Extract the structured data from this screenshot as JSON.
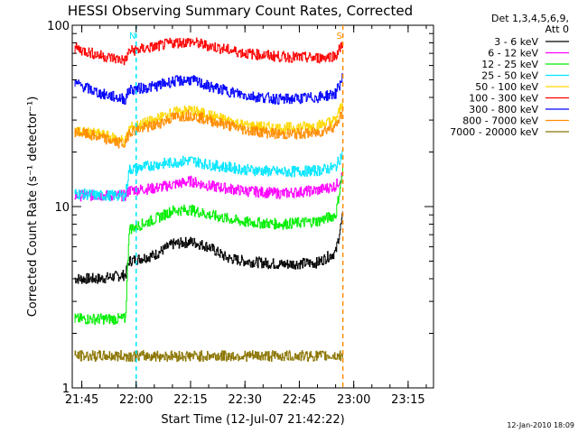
{
  "chart_data": {
    "type": "line",
    "title": "HESSI Observing Summary Count Rates, Corrected",
    "xlabel": "Start Time (12-Jul-07 21:42:22)",
    "ylabel": "Corrected Count Rate (s⁻¹ detector⁻¹)",
    "y_scale": "log",
    "ylim": [
      1,
      100
    ],
    "xlim": [
      "21:42:22",
      "23:22:00"
    ],
    "x_ticks": [
      "21:45",
      "22:00",
      "22:15",
      "22:30",
      "22:45",
      "23:00",
      "23:15"
    ],
    "y_ticks": [
      "1",
      "10",
      "100"
    ],
    "grid": false,
    "legend_header": [
      "Det 1,3,4,5,6,9,",
      "Att 0"
    ],
    "legend_position": "right",
    "timestamp": "12-Jan-2010 18:09",
    "markers": [
      {
        "label": "N",
        "time": "22:00",
        "color": "#00e6ff"
      },
      {
        "label": "S",
        "time": "22:57",
        "color": "#ff8c00"
      }
    ],
    "series": [
      {
        "name": "3 - 6 keV",
        "color": "#000000",
        "points": [
          [
            "21:43",
            4.0
          ],
          [
            "21:50",
            4.0
          ],
          [
            "21:57",
            4.2
          ],
          [
            "21:58",
            5.0
          ],
          [
            "22:05",
            5.4
          ],
          [
            "22:10",
            6.2
          ],
          [
            "22:15",
            6.4
          ],
          [
            "22:20",
            6.0
          ],
          [
            "22:25",
            5.2
          ],
          [
            "22:30",
            5.0
          ],
          [
            "22:40",
            4.8
          ],
          [
            "22:50",
            4.9
          ],
          [
            "22:55",
            5.6
          ],
          [
            "22:57",
            9.0
          ]
        ]
      },
      {
        "name": "6 - 12 keV",
        "color": "#ff00ff",
        "points": [
          [
            "21:43",
            11.5
          ],
          [
            "21:50",
            11.5
          ],
          [
            "21:57",
            11.5
          ],
          [
            "21:58",
            12.3
          ],
          [
            "22:05",
            12.6
          ],
          [
            "22:10",
            13.2
          ],
          [
            "22:15",
            13.8
          ],
          [
            "22:20",
            13.0
          ],
          [
            "22:30",
            12.2
          ],
          [
            "22:40",
            11.8
          ],
          [
            "22:50",
            12.3
          ],
          [
            "22:55",
            13.0
          ],
          [
            "22:57",
            15.0
          ]
        ]
      },
      {
        "name": "12 - 25 keV",
        "color": "#00ee00",
        "points": [
          [
            "21:43",
            2.4
          ],
          [
            "21:57",
            2.4
          ],
          [
            "21:58",
            7.5
          ],
          [
            "22:05",
            8.5
          ],
          [
            "22:10",
            9.5
          ],
          [
            "22:15",
            9.6
          ],
          [
            "22:20",
            9.0
          ],
          [
            "22:30",
            8.2
          ],
          [
            "22:40",
            8.0
          ],
          [
            "22:50",
            8.3
          ],
          [
            "22:55",
            9.0
          ],
          [
            "22:57",
            16.0
          ]
        ]
      },
      {
        "name": "25 - 50 keV",
        "color": "#00e6ff",
        "points": [
          [
            "21:43",
            11.8
          ],
          [
            "21:50",
            11.5
          ],
          [
            "21:57",
            11.5
          ],
          [
            "21:58",
            16.0
          ],
          [
            "22:05",
            17.0
          ],
          [
            "22:10",
            17.5
          ],
          [
            "22:15",
            18.0
          ],
          [
            "22:20",
            17.0
          ],
          [
            "22:30",
            16.0
          ],
          [
            "22:40",
            15.5
          ],
          [
            "22:50",
            15.8
          ],
          [
            "22:55",
            16.5
          ],
          [
            "22:57",
            20.0
          ]
        ]
      },
      {
        "name": "50 - 100 keV",
        "color": "#ffd700",
        "points": [
          [
            "21:43",
            26.0
          ],
          [
            "21:50",
            25.0
          ],
          [
            "21:57",
            23.0
          ],
          [
            "21:58",
            27.0
          ],
          [
            "22:05",
            30.0
          ],
          [
            "22:10",
            33.0
          ],
          [
            "22:15",
            34.0
          ],
          [
            "22:20",
            32.0
          ],
          [
            "22:30",
            28.0
          ],
          [
            "22:40",
            27.0
          ],
          [
            "22:50",
            28.0
          ],
          [
            "22:55",
            30.0
          ],
          [
            "22:57",
            38.0
          ]
        ]
      },
      {
        "name": "100 - 300 keV",
        "color": "#ff0000",
        "points": [
          [
            "21:43",
            75.0
          ],
          [
            "21:50",
            68.0
          ],
          [
            "21:57",
            64.0
          ],
          [
            "21:58",
            72.0
          ],
          [
            "22:05",
            76.0
          ],
          [
            "22:10",
            80.0
          ],
          [
            "22:15",
            81.0
          ],
          [
            "22:20",
            77.0
          ],
          [
            "22:30",
            70.0
          ],
          [
            "22:40",
            67.0
          ],
          [
            "22:50",
            66.0
          ],
          [
            "22:55",
            68.0
          ],
          [
            "22:57",
            80.0
          ]
        ]
      },
      {
        "name": "300 - 800 keV",
        "color": "#0000ff",
        "points": [
          [
            "21:43",
            48.0
          ],
          [
            "21:50",
            42.0
          ],
          [
            "21:57",
            39.0
          ],
          [
            "21:58",
            44.0
          ],
          [
            "22:05",
            46.0
          ],
          [
            "22:10",
            49.0
          ],
          [
            "22:15",
            50.0
          ],
          [
            "22:20",
            46.0
          ],
          [
            "22:30",
            41.0
          ],
          [
            "22:40",
            39.0
          ],
          [
            "22:50",
            40.0
          ],
          [
            "22:55",
            42.0
          ],
          [
            "22:57",
            52.0
          ]
        ]
      },
      {
        "name": "800 - 7000 keV",
        "color": "#ff8c00",
        "points": [
          [
            "21:43",
            26.0
          ],
          [
            "21:50",
            24.0
          ],
          [
            "21:57",
            22.0
          ],
          [
            "21:58",
            26.0
          ],
          [
            "22:05",
            28.0
          ],
          [
            "22:10",
            31.0
          ],
          [
            "22:15",
            32.0
          ],
          [
            "22:20",
            30.0
          ],
          [
            "22:30",
            26.5
          ],
          [
            "22:40",
            25.0
          ],
          [
            "22:50",
            25.5
          ],
          [
            "22:55",
            28.0
          ],
          [
            "22:57",
            34.0
          ]
        ]
      },
      {
        "name": "7000 - 20000 keV",
        "color": "#8b7500",
        "points": [
          [
            "21:43",
            1.5
          ],
          [
            "22:57",
            1.5
          ]
        ]
      }
    ]
  }
}
